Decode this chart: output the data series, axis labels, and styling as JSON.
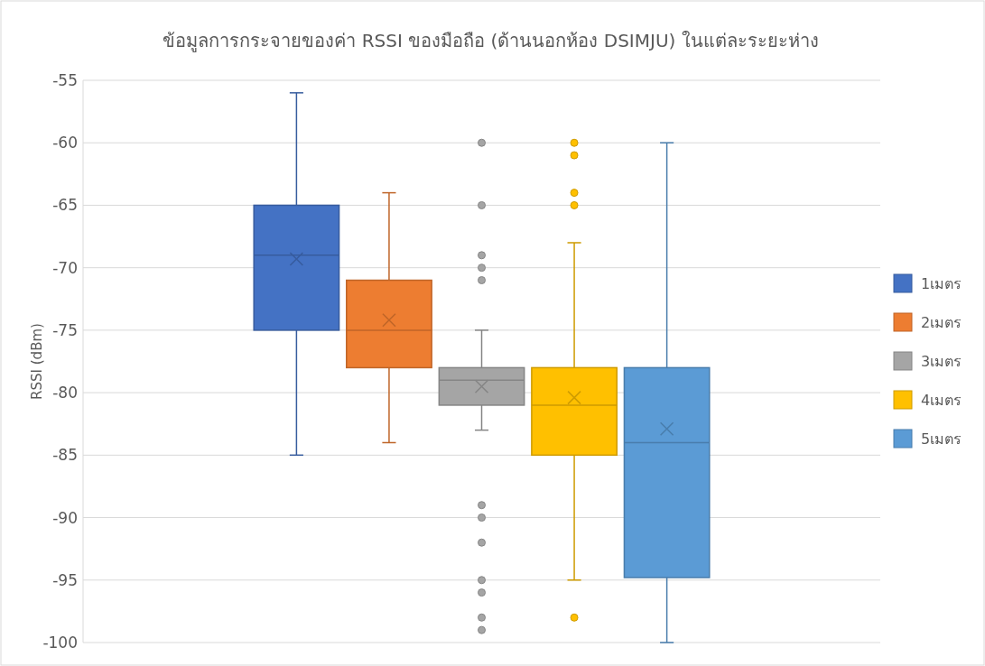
{
  "chart_data": {
    "type": "box",
    "title": "ข้อมูลการกระจายของค่า RSSI ของมือถือ (ด้านนอกห้อง DSIMJU) ในแต่ละระยะห่าง",
    "ylabel": "RSSI (dBm)",
    "categories": [
      null
    ],
    "series": [
      {
        "name": "1เมตร",
        "color": "#4472c4",
        "boxes": [
          {
            "low": -85,
            "q1": -75,
            "median": -69,
            "q3": -65,
            "high": -56,
            "mean": -69.3
          }
        ]
      },
      {
        "name": "2เมตร",
        "color": "#ed7d31",
        "boxes": [
          {
            "low": -84,
            "q1": -78,
            "median": -75,
            "q3": -71,
            "high": -64,
            "mean": -74.2
          }
        ]
      },
      {
        "name": "3เมตร",
        "color": "#a5a5a5",
        "boxes": [
          {
            "low": -83,
            "q1": -81,
            "median": -79,
            "q3": -78,
            "high": -75,
            "mean": -79.5,
            "outliers": [
              -60,
              -65,
              -69,
              -70,
              -71,
              -89,
              -90,
              -92,
              -95,
              -96,
              -98,
              -99
            ]
          }
        ]
      },
      {
        "name": "4เมตร",
        "color": "#ffc000",
        "boxes": [
          {
            "low": -95,
            "q1": -85,
            "median": -81,
            "q3": -78,
            "high": -68,
            "mean": -80.4,
            "outliers": [
              -60,
              -61,
              -64,
              -65,
              -98
            ]
          }
        ]
      },
      {
        "name": "5เมตร",
        "color": "#5b9bd5",
        "boxes": [
          {
            "low": -100,
            "q1": -94.8,
            "median": -84,
            "q3": -78,
            "high": -60,
            "mean": -82.9
          }
        ]
      }
    ],
    "ylim": [
      -100,
      -55
    ],
    "yticks": [
      -100,
      -95,
      -90,
      -85,
      -80,
      -75,
      -70,
      -65,
      -60,
      -55
    ],
    "grid": "y",
    "legend": "right",
    "marker": "cross"
  }
}
